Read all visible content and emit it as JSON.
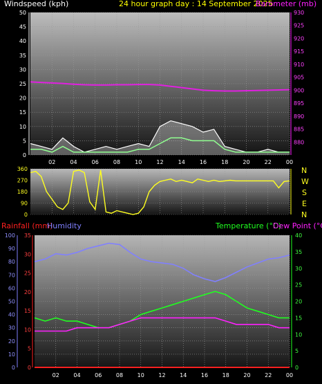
{
  "header": {
    "left_title": "Windspeed (kph)",
    "center_title": "24 hour graph day : 14 September 2025",
    "right_title": "Barometer (mb)"
  },
  "dir_labels": [
    "N",
    "W",
    "S",
    "E",
    "N"
  ],
  "bottom_titles": {
    "rainfall": "Rainfall (mm)",
    "humidity": "Humidity",
    "temperature": "Temperature (°C)",
    "dewpoint": "Dew Point (°C)"
  },
  "colors": {
    "background": "#000000",
    "windspeed": "#ffffff",
    "windgust_fill": "#e8e8e8",
    "wind_avg": "#90ff90",
    "barometer": "#e020e0",
    "direction": "#ffff20",
    "rainfall": "#ff2020",
    "humidity": "#8080ff",
    "temperature": "#20ff20",
    "dewpoint": "#ff20ff",
    "title_yellow": "#ffff00",
    "axis_left": "#ffffff"
  },
  "chart_data": [
    {
      "type": "line",
      "id": "wind-baro",
      "x_ticks": [
        "02",
        "04",
        "06",
        "08",
        "10",
        "12",
        "14",
        "16",
        "18",
        "20",
        "22",
        "00"
      ],
      "ylabel_left": "Windspeed (kph)",
      "ylim_left": [
        0,
        50
      ],
      "yticks_left": [
        0,
        5,
        10,
        15,
        20,
        25,
        30,
        35,
        40,
        45,
        50
      ],
      "ylabel_right": "Barometer (mb)",
      "ylim_right": [
        875,
        930
      ],
      "yticks_right": [
        880,
        885,
        890,
        895,
        900,
        905,
        910,
        915,
        920,
        925,
        930
      ],
      "x": [
        0,
        1,
        2,
        3,
        4,
        5,
        6,
        7,
        8,
        9,
        10,
        11,
        12,
        13,
        14,
        15,
        16,
        17,
        18,
        19,
        20,
        21,
        22,
        23,
        24
      ],
      "series": [
        {
          "name": "Windspeed (kph)",
          "axis": "left",
          "values": [
            4,
            3,
            2,
            6,
            3,
            1,
            2,
            3,
            2,
            3,
            4,
            3,
            10,
            12,
            11,
            10,
            8,
            9,
            3,
            2,
            1,
            1,
            2,
            1,
            1
          ]
        },
        {
          "name": "Wind average",
          "axis": "left",
          "values": [
            2,
            2,
            1,
            3,
            1,
            1,
            1,
            1,
            1,
            1,
            2,
            2,
            4,
            6,
            6,
            5,
            5,
            5,
            2,
            1,
            1,
            1,
            1,
            1,
            1
          ]
        },
        {
          "name": "Barometer (mb)",
          "axis": "right",
          "values": [
            903.2,
            903.0,
            902.8,
            902.6,
            902.3,
            902.1,
            902.0,
            902.0,
            902.1,
            902.1,
            902.2,
            902.2,
            902.0,
            901.5,
            901.0,
            900.5,
            900.0,
            899.8,
            899.7,
            899.7,
            899.8,
            899.9,
            900.0,
            900.1,
            900.2
          ]
        }
      ]
    },
    {
      "type": "line",
      "id": "wind-direction",
      "ylim": [
        0,
        360
      ],
      "yticks": [
        0,
        90,
        180,
        270,
        360
      ],
      "x": [
        0,
        0.5,
        1,
        1.5,
        2,
        2.5,
        3,
        3.5,
        4,
        4.5,
        5,
        5.5,
        6,
        6.5,
        7,
        7.5,
        8,
        8.5,
        9,
        9.5,
        10,
        10.5,
        11,
        11.5,
        12,
        12.5,
        13,
        13.5,
        14,
        14.5,
        15,
        15.5,
        16,
        16.5,
        17,
        17.5,
        18,
        18.5,
        19,
        19.5,
        20,
        20.5,
        21,
        21.5,
        22,
        22.5,
        23,
        23.5,
        24
      ],
      "series": [
        {
          "name": "Wind direction",
          "values": [
            330,
            340,
            300,
            180,
            120,
            60,
            40,
            90,
            340,
            350,
            330,
            100,
            40,
            350,
            20,
            10,
            30,
            20,
            10,
            0,
            10,
            60,
            180,
            230,
            260,
            270,
            280,
            260,
            270,
            260,
            250,
            280,
            270,
            260,
            270,
            260,
            265,
            270,
            265,
            265,
            265,
            265,
            265,
            265,
            265,
            265,
            210,
            260,
            265
          ]
        }
      ]
    },
    {
      "type": "line",
      "id": "temp-humidity",
      "x_ticks": [
        "02",
        "04",
        "06",
        "08",
        "10",
        "12",
        "14",
        "16",
        "18",
        "20",
        "22",
        "00"
      ],
      "ylim_humidity": [
        0,
        100
      ],
      "yticks_humidity": [
        0,
        10,
        20,
        30,
        40,
        50,
        60,
        70,
        80,
        90,
        100
      ],
      "ylim_rain": [
        0,
        35
      ],
      "yticks_rain": [
        0,
        5,
        10,
        15,
        20,
        25,
        30,
        35
      ],
      "ylim_temp": [
        0,
        40
      ],
      "yticks_temp": [
        0,
        5,
        10,
        15,
        20,
        25,
        30,
        35,
        40
      ],
      "x": [
        0,
        1,
        2,
        3,
        4,
        5,
        6,
        7,
        8,
        9,
        10,
        11,
        12,
        13,
        14,
        15,
        16,
        17,
        18,
        19,
        20,
        21,
        22,
        23,
        24
      ],
      "series": [
        {
          "name": "Humidity",
          "axis": "humidity",
          "values": [
            80,
            82,
            86,
            85,
            87,
            90,
            92,
            94,
            93,
            87,
            82,
            80,
            79,
            78,
            75,
            70,
            67,
            65,
            68,
            72,
            76,
            79,
            82,
            83,
            85
          ]
        },
        {
          "name": "Temperature (°C)",
          "axis": "temp",
          "values": [
            15,
            14,
            15,
            14,
            14,
            13,
            12,
            12,
            13,
            14,
            16,
            17,
            18,
            19,
            20,
            21,
            22,
            23,
            22,
            20,
            18,
            17,
            16,
            15,
            15
          ]
        },
        {
          "name": "Dew Point (°C)",
          "axis": "temp",
          "values": [
            11,
            11,
            11,
            11,
            12,
            12,
            12,
            12,
            13,
            14,
            15,
            15,
            15,
            15,
            15,
            15,
            15,
            15,
            14,
            13,
            13,
            13,
            13,
            12,
            12
          ]
        },
        {
          "name": "Rainfall (mm)",
          "axis": "rain",
          "values": [
            0,
            0,
            0,
            0,
            0,
            0,
            0,
            0,
            0,
            0,
            0,
            0,
            0,
            0,
            0,
            0,
            0,
            0,
            0,
            0,
            0,
            0,
            0,
            0,
            0
          ]
        }
      ]
    }
  ]
}
